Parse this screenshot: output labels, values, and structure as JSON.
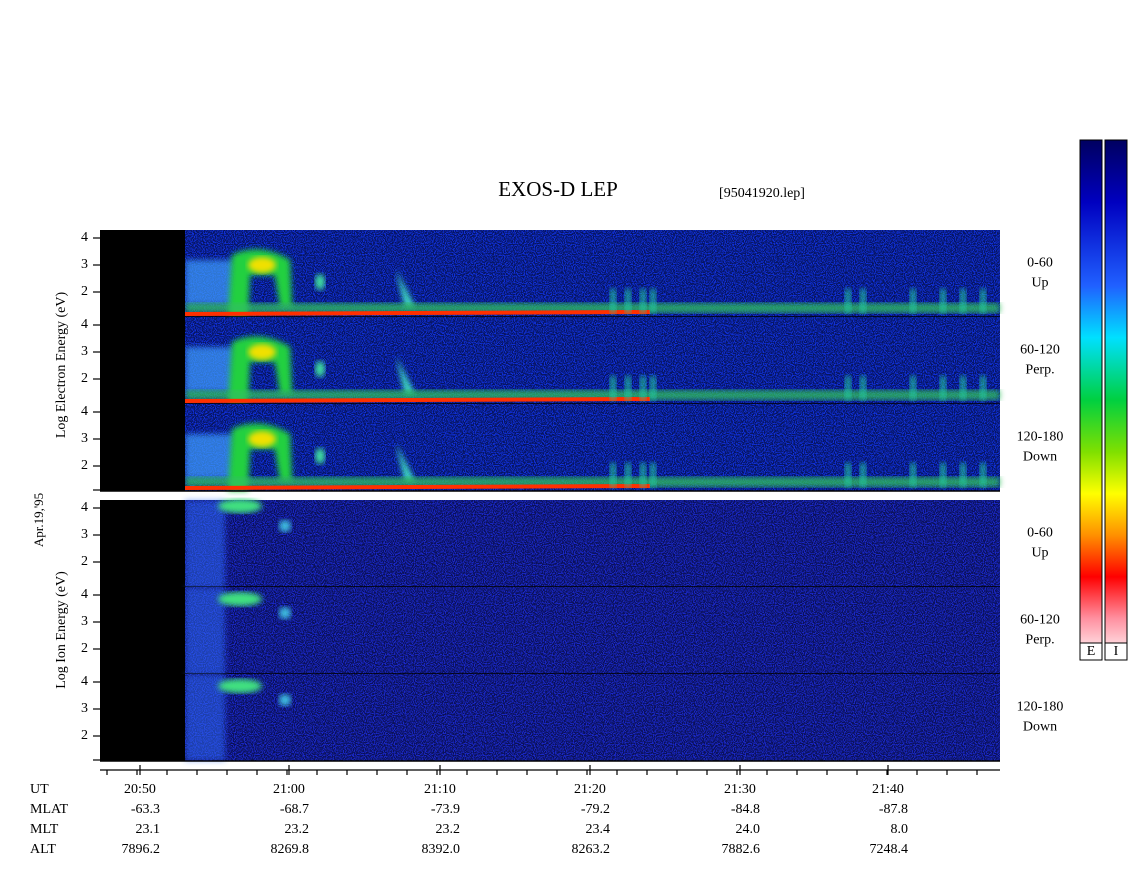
{
  "title": "EXOS-D LEP",
  "file": "[95041920.lep]",
  "date": "Apr.19,'95",
  "electron_label": "Log  Electron  Energy (eV)",
  "ion_label": "Log  Ion  Energy (eV)",
  "energy_ticks": [
    "4",
    "3",
    "2"
  ],
  "pitch_bins": [
    {
      "range": "0-60",
      "direction": "Up"
    },
    {
      "range": "60-120",
      "direction": "Perp."
    },
    {
      "range": "120-180",
      "direction": "Down"
    }
  ],
  "colorbars": [
    "E",
    "I"
  ],
  "footer": {
    "rows": [
      {
        "label": "UT",
        "values": [
          "20:50",
          "21:00",
          "21:10",
          "21:20",
          "21:30",
          "21:40"
        ]
      },
      {
        "label": "MLAT",
        "values": [
          "-63.3",
          "-68.7",
          "-73.9",
          "-79.2",
          "-84.8",
          "-87.8"
        ]
      },
      {
        "label": "MLT",
        "values": [
          "23.1",
          "23.2",
          "23.2",
          "23.4",
          "24.0",
          "8.0"
        ]
      },
      {
        "label": "ALT",
        "values": [
          "7896.2",
          "8269.8",
          "8392.0",
          "8263.2",
          "7882.6",
          "7248.4"
        ]
      }
    ]
  }
}
